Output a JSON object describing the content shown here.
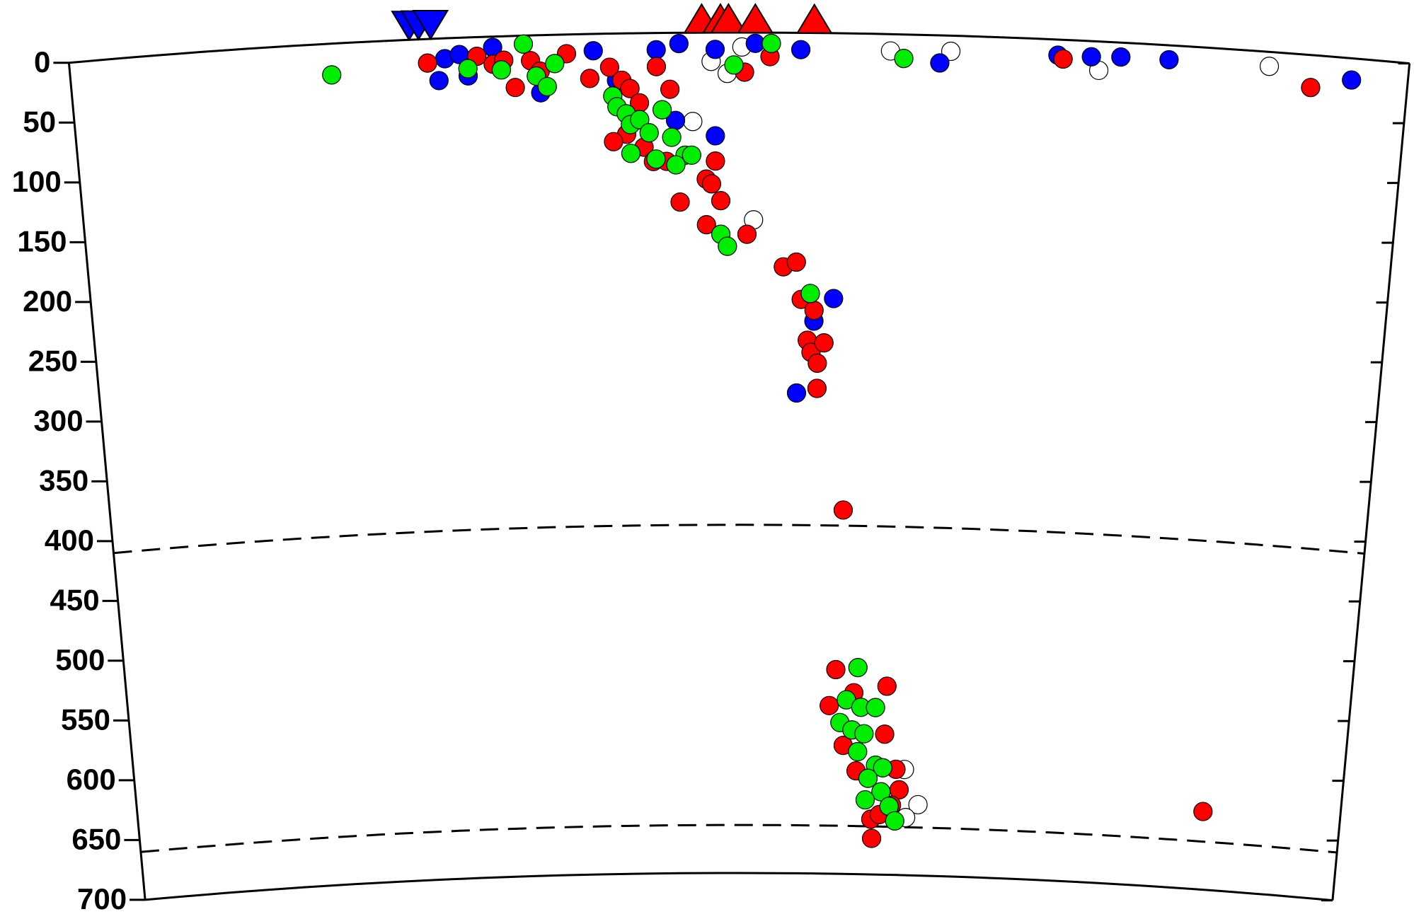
{
  "chart_data": {
    "type": "scatter",
    "xlim": [
      0,
      100
    ],
    "ylim": [
      0,
      700
    ],
    "y_inverted": true,
    "yticks": [
      0,
      50,
      100,
      150,
      200,
      250,
      300,
      350,
      400,
      450,
      500,
      550,
      600,
      650,
      700
    ],
    "grid": false,
    "reference_depths": [
      410,
      660
    ],
    "series": [
      {
        "color": "#ffffff",
        "x": [
          46.5,
          47.9,
          49.1,
          50.2,
          51.1,
          61.3,
          65.8,
          76.9,
          89.6,
          63.7,
          64.9,
          63.9
        ],
        "values": [
          74,
          24,
          34,
          12,
          156,
          14,
          13,
          24,
          12,
          612,
          641,
          652
        ]
      },
      {
        "color": "#0000ff",
        "x": [
          27.5,
          28.0,
          29.1,
          31.6,
          29.7,
          35.1,
          39.1,
          40.8,
          43.8,
          45.5,
          48.2,
          51.2,
          54.6,
          45.2,
          48.2,
          55.8,
          57.3,
          54.5,
          65.0,
          73.8,
          76.3,
          78.5,
          82.1,
          95.8
        ],
        "values": [
          35,
          17,
          14,
          9,
          32,
          48,
          14,
          39,
          14,
          9,
          14,
          9,
          14,
          73,
          86,
          240,
          221,
          300,
          23,
          13,
          13,
          12,
          12,
          18
        ]
      },
      {
        "color": "#ff0000",
        "x": [
          26.7,
          30.4,
          31.6,
          32.4,
          33.2,
          34.4,
          35.1,
          37.1,
          38.8,
          40.3,
          41.2,
          41.8,
          42.5,
          41.5,
          40.5,
          42.8,
          43.5,
          44.5,
          43.8,
          44.8,
          45.5,
          47.5,
          47.9,
          48.2,
          48.6,
          47.5,
          50.4,
          50.6,
          52.3,
          53.4,
          54.4,
          54.8,
          55.8,
          55.3,
          55.6,
          56.1,
          56.6,
          56.1,
          58.3,
          57.9,
          57.4,
          59.4,
          62.1,
          58.6,
          59.7,
          62.0,
          63.0,
          63.3,
          62.7,
          61.0,
          61.7,
          61.1,
          74.2,
          92.8,
          88.6
        ],
        "values": [
          20,
          16,
          23,
          20,
          43,
          21,
          30,
          16,
          37,
          28,
          39,
          46,
          58,
          84,
          90,
          95,
          107,
          107,
          28,
          47,
          141,
          122,
          126,
          107,
          140,
          160,
          33,
          168,
          20,
          195,
          191,
          222,
          231,
          256,
          266,
          275,
          258,
          296,
          397,
          530,
          560,
          549,
          543,
          593,
          614,
          583,
          612,
          629,
          642,
          654,
          650,
          670,
          16,
          27,
          635
        ]
      },
      {
        "color": "#00ee00",
        "x": [
          19.5,
          29.7,
          32.2,
          33.9,
          34.8,
          35.6,
          36.2,
          40.5,
          40.8,
          41.5,
          41.8,
          42.5,
          43.2,
          44.2,
          44.9,
          45.9,
          46.4,
          41.8,
          43.7,
          45.2,
          48.6,
          49.1,
          49.6,
          52.4,
          62.3,
          55.5,
          59.7,
          58.8,
          60.0,
          61.2,
          58.3,
          59.3,
          60.3,
          59.8,
          61.3,
          61.9,
          60.7,
          61.8,
          60.5,
          62.5,
          63.0
        ],
        "values": [
          26,
          26,
          28,
          7,
          34,
          43,
          24,
          52,
          61,
          67,
          76,
          72,
          83,
          64,
          87,
          102,
          102,
          100,
          105,
          110,
          168,
          178,
          27,
          9,
          20,
          217,
          528,
          555,
          561,
          561,
          574,
          580,
          583,
          598,
          609,
          611,
          620,
          631,
          638,
          643,
          655
        ]
      }
    ],
    "stations": [
      {
        "color": "#0000ff",
        "shape": "down",
        "x": [
          25.4,
          26.1,
          27.0
        ]
      },
      {
        "color": "#ff0000",
        "shape": "up",
        "x": [
          47.2,
          48.6,
          49.2,
          51.2,
          55.6
        ]
      }
    ]
  }
}
